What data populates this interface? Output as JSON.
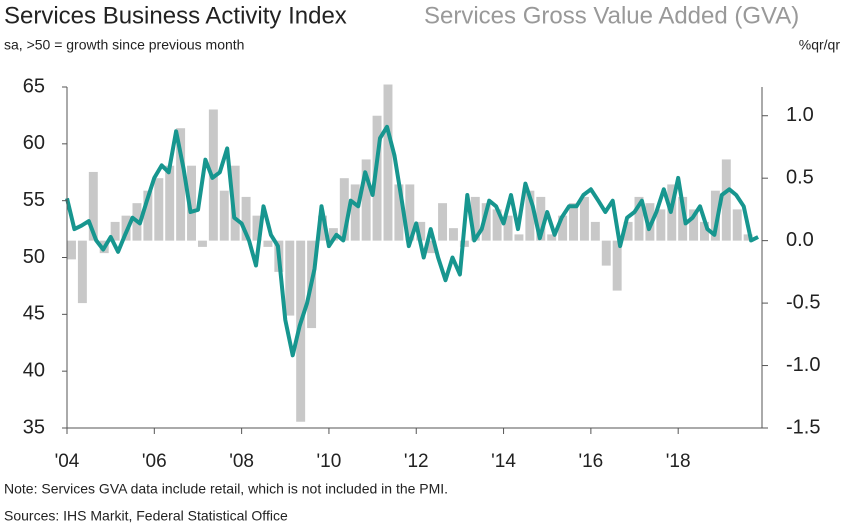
{
  "chart_data": {
    "type": "combo",
    "subtitle": "sa, >50 = growth since previous month",
    "y2_label": "%qr/qr",
    "notes": [
      "Note: Services GVA data include retail, which is not included in the PMI.",
      "Sources: IHS Markit, Federal Statistical Office"
    ],
    "xlim": [
      2004,
      2019.92
    ],
    "xticks": [
      {
        "value": 2004,
        "label": "'04"
      },
      {
        "value": 2006,
        "label": "'06"
      },
      {
        "value": 2008,
        "label": "'08"
      },
      {
        "value": 2010,
        "label": "'10"
      },
      {
        "value": 2012,
        "label": "'12"
      },
      {
        "value": 2014,
        "label": "'14"
      },
      {
        "value": 2016,
        "label": "'16"
      },
      {
        "value": 2018,
        "label": "'18"
      }
    ],
    "ylim": [
      35,
      65
    ],
    "yticks": [
      35,
      40,
      45,
      50,
      55,
      60,
      65
    ],
    "y2lim": [
      -1.5,
      1.23
    ],
    "y2ticks": [
      {
        "value": 1,
        "label": "1.0"
      },
      0.5,
      {
        "value": 0,
        "label": "0.0"
      },
      -0.5,
      {
        "value": -1,
        "label": "-1.0"
      },
      -1.5
    ],
    "series": [
      {
        "name": "Services Business Activity Index",
        "type": "line",
        "axis": "y",
        "color": "#17968f",
        "x": [
          2004,
          2004.17,
          2004.33,
          2004.5,
          2004.67,
          2004.83,
          2005,
          2005.17,
          2005.33,
          2005.5,
          2005.67,
          2005.83,
          2006,
          2006.17,
          2006.33,
          2006.5,
          2006.67,
          2006.83,
          2007,
          2007.17,
          2007.33,
          2007.5,
          2007.67,
          2007.83,
          2008,
          2008.17,
          2008.33,
          2008.5,
          2008.67,
          2008.83,
          2009,
          2009.17,
          2009.33,
          2009.5,
          2009.67,
          2009.83,
          2010,
          2010.17,
          2010.33,
          2010.5,
          2010.67,
          2010.83,
          2011,
          2011.17,
          2011.33,
          2011.5,
          2011.67,
          2011.83,
          2012,
          2012.17,
          2012.33,
          2012.5,
          2012.67,
          2012.83,
          2013,
          2013.17,
          2013.33,
          2013.5,
          2013.67,
          2013.83,
          2014,
          2014.17,
          2014.33,
          2014.5,
          2014.67,
          2014.83,
          2015,
          2015.17,
          2015.33,
          2015.5,
          2015.67,
          2015.83,
          2016,
          2016.17,
          2016.33,
          2016.5,
          2016.67,
          2016.83,
          2017,
          2017.17,
          2017.33,
          2017.5,
          2017.67,
          2017.83,
          2018,
          2018.17,
          2018.33,
          2018.5,
          2018.67,
          2018.83,
          2019,
          2019.17,
          2019.33,
          2019.5,
          2019.67,
          2019.83
        ],
        "values": [
          55.2,
          52.5,
          52.8,
          53.2,
          51.5,
          50.7,
          51.8,
          50.5,
          52.0,
          53.5,
          53.0,
          55.0,
          57.0,
          58.1,
          57.5,
          61.1,
          57.8,
          54.0,
          54.2,
          58.6,
          57.0,
          57.5,
          59.6,
          53.5,
          53.0,
          51.5,
          49.3,
          54.5,
          52.0,
          51.0,
          44.5,
          41.4,
          44.0,
          46.0,
          49.0,
          54.5,
          51.0,
          52.0,
          51.5,
          55.0,
          54.5,
          57.5,
          55.5,
          60.5,
          61.5,
          59.0,
          55.0,
          51.0,
          53.0,
          50.0,
          52.5,
          50.0,
          48.0,
          50.0,
          48.5,
          55.5,
          51.5,
          52.5,
          55.0,
          54.5,
          53.0,
          55.5,
          52.5,
          56.5,
          54.5,
          51.7,
          54.0,
          52.0,
          53.5,
          54.5,
          54.5,
          55.5,
          56.0,
          55.0,
          54.0,
          55.0,
          51.0,
          53.5,
          54.0,
          55.0,
          52.5,
          54.0,
          56.0,
          54.0,
          57.0,
          53.0,
          53.5,
          54.5,
          52.5,
          52.0,
          55.5,
          56.0,
          55.5,
          54.5,
          51.5,
          51.8
        ]
      },
      {
        "name": "Services Gross Value Added (GVA)",
        "type": "bar",
        "axis": "y2",
        "color": "#c8c8c8",
        "x": [
          2004,
          2004.25,
          2004.5,
          2004.75,
          2005,
          2005.25,
          2005.5,
          2005.75,
          2006,
          2006.25,
          2006.5,
          2006.75,
          2007,
          2007.25,
          2007.5,
          2007.75,
          2008,
          2008.25,
          2008.5,
          2008.75,
          2009,
          2009.25,
          2009.5,
          2009.75,
          2010,
          2010.25,
          2010.5,
          2010.75,
          2011,
          2011.25,
          2011.5,
          2011.75,
          2012,
          2012.25,
          2012.5,
          2012.75,
          2013,
          2013.25,
          2013.5,
          2013.75,
          2014,
          2014.25,
          2014.5,
          2014.75,
          2015,
          2015.25,
          2015.5,
          2015.75,
          2016,
          2016.25,
          2016.5,
          2016.75,
          2017,
          2017.25,
          2017.5,
          2017.75,
          2018,
          2018.25,
          2018.5,
          2018.75,
          2019,
          2019.25,
          2019.5
        ],
        "values": [
          -0.15,
          -0.5,
          0.55,
          -0.1,
          0.15,
          0.2,
          0.3,
          0.4,
          0.5,
          0.6,
          0.9,
          0.6,
          -0.05,
          1.05,
          0.4,
          0.6,
          0.35,
          0.2,
          -0.05,
          -0.25,
          -0.6,
          -1.45,
          -0.7,
          0.2,
          0.1,
          0.5,
          0.45,
          0.65,
          1.0,
          1.25,
          0.45,
          0.45,
          0.15,
          -0.1,
          0.3,
          0.1,
          -0.05,
          0.35,
          0.3,
          0.25,
          0.2,
          0.05,
          0.4,
          0.35,
          0.05,
          0.2,
          0.3,
          0.35,
          0.15,
          -0.2,
          -0.4,
          0.15,
          0.35,
          0.3,
          0.25,
          0.45,
          0.35,
          0.25,
          0.15,
          0.4,
          0.65,
          0.25,
          0.05
        ]
      }
    ]
  }
}
